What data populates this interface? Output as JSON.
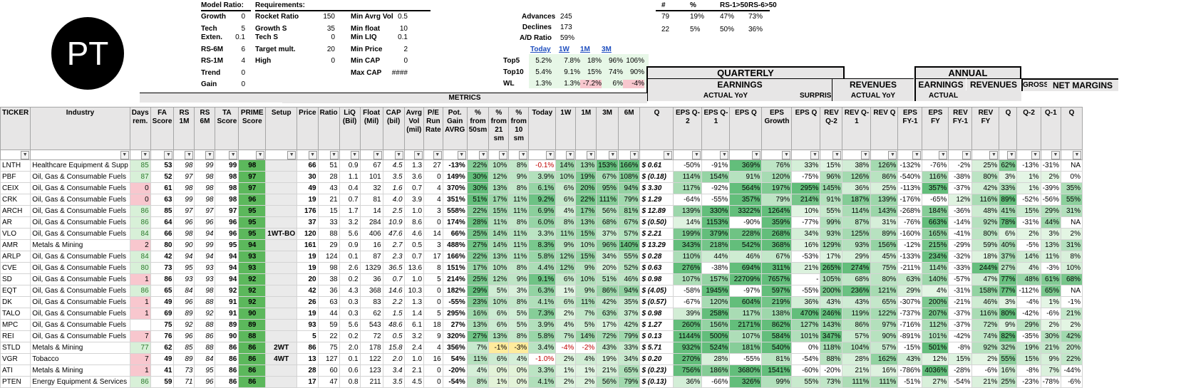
{
  "logo_text": "PT",
  "model_ratio": {
    "title": "Model Ratio:",
    "rows": [
      {
        "label": "Growth",
        "value": "0"
      },
      {
        "label": "Tech",
        "value": "5"
      },
      {
        "label": "Exten.",
        "value": "0.1"
      },
      {
        "label": "RS-6M",
        "value": "6"
      },
      {
        "label": "RS-1M",
        "value": "4"
      },
      {
        "label": "Trend",
        "value": "0"
      },
      {
        "label": "Gain",
        "value": "0"
      }
    ]
  },
  "requirements": {
    "title": "Requirements:",
    "col1": [
      {
        "label": "Rocket Ratio",
        "value": "150"
      },
      {
        "label": "Growth S",
        "value": "35"
      },
      {
        "label": "Tech S",
        "value": "0"
      },
      {
        "label": "Target mult.",
        "value": "20"
      },
      {
        "label": "High",
        "value": "0"
      }
    ],
    "col2": [
      {
        "label": "Min Avrg Vol",
        "value": "0.5"
      },
      {
        "label": "Min float",
        "value": "10"
      },
      {
        "label": "Min LIQ",
        "value": "0.1"
      },
      {
        "label": "Min Price",
        "value": "2"
      },
      {
        "label": "Min CAP",
        "value": "0"
      },
      {
        "label": "Max CAP",
        "value": "####"
      }
    ]
  },
  "breadth": {
    "advances_label": "Advances",
    "advances": "245",
    "declines_label": "Declines",
    "declines": "173",
    "ad_label": "A/D Ratio",
    "ad": "59%"
  },
  "stats": {
    "headers": [
      "#",
      "%",
      "RS-1>50",
      "RS-6>50"
    ],
    "rows": [
      [
        "79",
        "19%",
        "47%",
        "73%"
      ],
      [
        "22",
        "5%",
        "50%",
        "36%"
      ]
    ]
  },
  "perf": {
    "periods": [
      "Today",
      "1W",
      "1M",
      "3M"
    ],
    "rows": [
      {
        "label": "Top5",
        "values": [
          "5.2%",
          "7.8%",
          "18%",
          "96%",
          "106%"
        ]
      },
      {
        "label": "Top10",
        "values": [
          "5.4%",
          "9.1%",
          "15%",
          "74%",
          "90%"
        ]
      },
      {
        "label": "WL",
        "values": [
          "1.3%",
          "1.3%",
          "-7.2%",
          "6%",
          "-4%"
        ]
      }
    ]
  },
  "section_headers": {
    "quarterly": "QUARTERLY",
    "annual": "ANNUAL",
    "earnings": "EARNINGS",
    "revenues": "REVENUES",
    "earnings2": "EARNINGS",
    "revenues2": "REVENUES",
    "actual_yoy": "ACTUAL YoY",
    "surprise": "SURPRISE",
    "actual_yoy2": "ACTUAL YoY",
    "actual": "ACTUAL",
    "gross": "GROSS",
    "net_margins": "NET MARGINS",
    "metrics": "METRICS"
  },
  "columns": [
    "TICKER",
    "Industry",
    "Days rem.",
    "FA Score",
    "RS 1M",
    "RS 6M",
    "TA Score",
    "PRIME Score",
    "Setup",
    "Price",
    "Ratio",
    "LiQ (Bil)",
    "Float (Mil)",
    "CAP (bil)",
    "Avrg Vol (mil)",
    "P/E Run Rate",
    "Pot. Gain AVRG",
    "% from 50sm",
    "% from 21 sm",
    "% from 10 sm",
    "Today",
    "1W",
    "1M",
    "3M",
    "6M",
    "Q",
    "EPS Q-2",
    "EPS Q-1",
    "EPS Q",
    "EPS Growth",
    "EPS Q",
    "REV Q-2",
    "REV Q-1",
    "REV Q",
    "EPS FY-1",
    "EPS FY",
    "REV FY-1",
    "REV FY",
    "Q",
    "Q-2",
    "Q-1",
    "Q"
  ],
  "rows": [
    [
      "LNTH",
      "Healthcare Equipment & Supp",
      "85",
      "53",
      "98",
      "99",
      "99",
      "98",
      "",
      "66",
      "51",
      "0.9",
      "67",
      "4.5",
      "1.3",
      "27",
      "-13%",
      "22%",
      "10%",
      "8%",
      "-0.1%",
      "14%",
      "13%",
      "153%",
      "166%",
      "$ 0.61",
      "-50%",
      "-91%",
      "369%",
      "76%",
      "33%",
      "15%",
      "38%",
      "126%",
      "-132%",
      "-76%",
      "-2%",
      "25%",
      "62%",
      "-13%",
      "-31%",
      "NA"
    ],
    [
      "PBF",
      "Oil, Gas & Consumable Fuels",
      "87",
      "52",
      "97",
      "98",
      "98",
      "97",
      "",
      "30",
      "28",
      "1.1",
      "101",
      "3.5",
      "3.6",
      "0",
      "149%",
      "30%",
      "12%",
      "9%",
      "3.9%",
      "10%",
      "19%",
      "67%",
      "108%",
      "$ (0.18)",
      "114%",
      "154%",
      "91%",
      "120%",
      "-75%",
      "96%",
      "126%",
      "86%",
      "-540%",
      "116%",
      "-38%",
      "80%",
      "3%",
      "1%",
      "2%",
      "0%"
    ],
    [
      "CEIX",
      "Oil, Gas & Consumable Fuels",
      "0",
      "61",
      "98",
      "98",
      "98",
      "97",
      "",
      "49",
      "43",
      "0.4",
      "32",
      "1.6",
      "0.7",
      "4",
      "370%",
      "30%",
      "13%",
      "8%",
      "6.1%",
      "6%",
      "20%",
      "95%",
      "94%",
      "$ 3.30",
      "117%",
      "-92%",
      "564%",
      "197%",
      "295%",
      "145%",
      "36%",
      "25%",
      "-113%",
      "357%",
      "-37%",
      "42%",
      "33%",
      "1%",
      "-39%",
      "35%"
    ],
    [
      "CRK",
      "Oil, Gas & Consumable Fuels",
      "0",
      "63",
      "99",
      "98",
      "98",
      "96",
      "",
      "19",
      "21",
      "0.7",
      "81",
      "4.0",
      "3.9",
      "4",
      "351%",
      "51%",
      "17%",
      "11%",
      "9.2%",
      "6%",
      "22%",
      "111%",
      "79%",
      "$ 1.29",
      "-64%",
      "-55%",
      "357%",
      "79%",
      "214%",
      "91%",
      "187%",
      "139%",
      "-176%",
      "-65%",
      "12%",
      "116%",
      "89%",
      "-52%",
      "-56%",
      "55%"
    ],
    [
      "ARCH",
      "Oil, Gas & Consumable Fuels",
      "86",
      "85",
      "97",
      "97",
      "97",
      "95",
      "",
      "176",
      "15",
      "1.7",
      "14",
      "2.5",
      "1.0",
      "3",
      "558%",
      "22%",
      "15%",
      "11%",
      "6.9%",
      "4%",
      "17%",
      "56%",
      "81%",
      "$ 12.89",
      "139%",
      "330%",
      "3322%",
      "1264%",
      "10%",
      "55%",
      "114%",
      "143%",
      "-268%",
      "184%",
      "-36%",
      "48%",
      "41%",
      "15%",
      "29%",
      "31%"
    ],
    [
      "AR",
      "Oil, Gas & Consumable Fuels",
      "86",
      "64",
      "96",
      "96",
      "96",
      "95",
      "",
      "37",
      "33",
      "3.2",
      "284",
      "10.9",
      "8.6",
      "0",
      "174%",
      "28%",
      "11%",
      "8%",
      "6.0%",
      "8%",
      "13%",
      "68%",
      "67%",
      "$ (0.50)",
      "14%",
      "1153%",
      "-90%",
      "359%",
      "-77%",
      "99%",
      "87%",
      "31%",
      "-76%",
      "663%",
      "-14%",
      "92%",
      "78%",
      "-31%",
      "44%",
      "NA"
    ],
    [
      "VLO",
      "Oil, Gas & Consumable Fuels",
      "84",
      "66",
      "98",
      "94",
      "96",
      "95",
      "1WT-BO",
      "120",
      "88",
      "5.6",
      "406",
      "47.6",
      "4.6",
      "14",
      "66%",
      "25%",
      "14%",
      "11%",
      "3.3%",
      "11%",
      "15%",
      "37%",
      "57%",
      "$ 2.21",
      "199%",
      "379%",
      "228%",
      "268%",
      "34%",
      "93%",
      "125%",
      "89%",
      "-160%",
      "165%",
      "-41%",
      "80%",
      "6%",
      "2%",
      "3%",
      "2%"
    ],
    [
      "AMR",
      "Metals & Mining",
      "2",
      "80",
      "90",
      "99",
      "95",
      "94",
      "",
      "161",
      "29",
      "0.9",
      "16",
      "2.7",
      "0.5",
      "3",
      "488%",
      "27%",
      "14%",
      "11%",
      "8.3%",
      "9%",
      "10%",
      "96%",
      "140%",
      "$ 13.29",
      "343%",
      "218%",
      "542%",
      "368%",
      "16%",
      "129%",
      "93%",
      "156%",
      "-12%",
      "215%",
      "-29%",
      "59%",
      "40%",
      "-5%",
      "13%",
      "31%"
    ],
    [
      "ARLP",
      "Oil, Gas & Consumable Fuels",
      "84",
      "42",
      "94",
      "94",
      "94",
      "93",
      "",
      "19",
      "124",
      "0.1",
      "87",
      "2.3",
      "0.7",
      "17",
      "166%",
      "22%",
      "13%",
      "11%",
      "5.8%",
      "12%",
      "15%",
      "34%",
      "55%",
      "$ 0.28",
      "110%",
      "44%",
      "46%",
      "67%",
      "-53%",
      "17%",
      "29%",
      "45%",
      "-133%",
      "234%",
      "-32%",
      "18%",
      "37%",
      "14%",
      "11%",
      "8%"
    ],
    [
      "CVE",
      "Oil, Gas & Consumable Fuels",
      "80",
      "73",
      "95",
      "93",
      "94",
      "93",
      "",
      "19",
      "98",
      "2.6",
      "1329",
      "36.5",
      "13.6",
      "8",
      "151%",
      "17%",
      "10%",
      "8%",
      "4.4%",
      "12%",
      "9%",
      "20%",
      "52%",
      "$ 0.63",
      "276%",
      "-38%",
      "694%",
      "311%",
      "21%",
      "265%",
      "274%",
      "75%",
      "-211%",
      "114%",
      "-33%",
      "244%",
      "27%",
      "4%",
      "-3%",
      "10%"
    ],
    [
      "SD",
      "Oil, Gas & Consumable Fuels",
      "1",
      "86",
      "93",
      "93",
      "94",
      "92",
      "",
      "20",
      "38",
      "0.2",
      "36",
      "0.7",
      "1.0",
      "5",
      "214%",
      "25%",
      "12%",
      "9%",
      "9.1%",
      "6%",
      "10%",
      "51%",
      "46%",
      "$ 0.98",
      "107%",
      "157%",
      "22709%",
      "7657%",
      "-",
      "105%",
      "68%",
      "80%",
      "63%",
      "140%",
      "-57%",
      "47%",
      "77%",
      "48%",
      "61%",
      "68%"
    ],
    [
      "EQT",
      "Oil, Gas & Consumable Fuels",
      "86",
      "65",
      "84",
      "98",
      "92",
      "92",
      "",
      "42",
      "36",
      "4.3",
      "368",
      "14.6",
      "10.3",
      "0",
      "182%",
      "29%",
      "5%",
      "3%",
      "6.3%",
      "1%",
      "9%",
      "86%",
      "94%",
      "$ (4.05)",
      "-58%",
      "1945%",
      "-97%",
      "597%",
      "-55%",
      "200%",
      "236%",
      "121%",
      "29%",
      "4%",
      "-31%",
      "158%",
      "77%",
      "-112%",
      "65%",
      "NA"
    ],
    [
      "DK",
      "Oil, Gas & Consumable Fuels",
      "1",
      "49",
      "96",
      "88",
      "91",
      "92",
      "",
      "26",
      "63",
      "0.3",
      "83",
      "2.2",
      "1.3",
      "0",
      "-55%",
      "23%",
      "10%",
      "8%",
      "4.1%",
      "6%",
      "11%",
      "42%",
      "35%",
      "$ (0.57)",
      "-67%",
      "120%",
      "604%",
      "219%",
      "36%",
      "43%",
      "43%",
      "65%",
      "-307%",
      "200%",
      "-21%",
      "46%",
      "3%",
      "-4%",
      "1%",
      "-1%"
    ],
    [
      "TALO",
      "Oil, Gas & Consumable Fuels",
      "1",
      "69",
      "89",
      "92",
      "91",
      "90",
      "",
      "19",
      "44",
      "0.3",
      "62",
      "1.5",
      "1.4",
      "5",
      "295%",
      "16%",
      "6%",
      "5%",
      "7.3%",
      "2%",
      "7%",
      "63%",
      "37%",
      "$ 0.98",
      "39%",
      "258%",
      "117%",
      "138%",
      "470%",
      "246%",
      "119%",
      "122%",
      "-737%",
      "207%",
      "-37%",
      "116%",
      "80%",
      "-42%",
      "-6%",
      "21%"
    ],
    [
      "MPC",
      "Oil, Gas & Consumable Fuels",
      "",
      "75",
      "92",
      "88",
      "89",
      "89",
      "",
      "93",
      "59",
      "5.6",
      "543",
      "48.6",
      "6.1",
      "18",
      "27%",
      "13%",
      "6%",
      "5%",
      "3.9%",
      "4%",
      "5%",
      "17%",
      "42%",
      "$ 1.27",
      "260%",
      "156%",
      "2171%",
      "862%",
      "127%",
      "143%",
      "86%",
      "97%",
      "-716%",
      "112%",
      "-37%",
      "72%",
      "9%",
      "29%",
      "2%",
      "2%"
    ],
    [
      "REI",
      "Oil, Gas & Consumable Fuels",
      "7",
      "76",
      "96",
      "86",
      "90",
      "88",
      "",
      "5",
      "22",
      "0.2",
      "72",
      "0.5",
      "3.2",
      "9",
      "320%",
      "27%",
      "13%",
      "8%",
      "5.8%",
      "7%",
      "14%",
      "72%",
      "79%",
      "$ 0.13",
      "1144%",
      "500%",
      "107%",
      "584%",
      "101%",
      "347%",
      "57%",
      "90%",
      "-891%",
      "101%",
      "-42%",
      "74%",
      "82%",
      "-35%",
      "30%",
      "42%"
    ],
    [
      "STLD",
      "Metals & Mining",
      "77",
      "62",
      "85",
      "88",
      "86",
      "86",
      "2WT",
      "86",
      "75",
      "2.0",
      "178",
      "15.8",
      "2.4",
      "4",
      "356%",
      "7%",
      "-1%",
      "-3%",
      "3.4%",
      "-4%",
      "-2%",
      "43%",
      "33%",
      "$ 5.71",
      "932%",
      "524%",
      "181%",
      "540%",
      "0%",
      "118%",
      "104%",
      "57%",
      "-15%",
      "501%",
      "-8%",
      "92%",
      "32%",
      "19%",
      "21%",
      "20%"
    ],
    [
      "VGR",
      "Tobacco",
      "7",
      "49",
      "89",
      "84",
      "86",
      "86",
      "4WT",
      "13",
      "127",
      "0.1",
      "122",
      "2.0",
      "1.0",
      "16",
      "54%",
      "11%",
      "6%",
      "4%",
      "-1.0%",
      "2%",
      "4%",
      "19%",
      "34%",
      "$ 0.20",
      "270%",
      "28%",
      "-55%",
      "81%",
      "-54%",
      "88%",
      "28%",
      "162%",
      "43%",
      "12%",
      "15%",
      "2%",
      "55%",
      "15%",
      "9%",
      "22%"
    ],
    [
      "ATI",
      "Metals & Mining",
      "1",
      "41",
      "73",
      "95",
      "86",
      "86",
      "",
      "28",
      "60",
      "0.6",
      "123",
      "3.4",
      "2.1",
      "0",
      "-20%",
      "4%",
      "0%",
      "0%",
      "3.3%",
      "1%",
      "1%",
      "21%",
      "65%",
      "$ (0.23)",
      "756%",
      "186%",
      "3680%",
      "1541%",
      "-60%",
      "-20%",
      "21%",
      "16%",
      "-786%",
      "4036%",
      "-28%",
      "-6%",
      "16%",
      "-8%",
      "7%",
      "-44%"
    ],
    [
      "PTEN",
      "Energy Equipment & Services",
      "86",
      "59",
      "71",
      "96",
      "86",
      "86",
      "",
      "17",
      "47",
      "0.8",
      "211",
      "3.5",
      "4.5",
      "0",
      "-54%",
      "8%",
      "1%",
      "0%",
      "4.1%",
      "2%",
      "2%",
      "56%",
      "79%",
      "$ (0.13)",
      "36%",
      "-66%",
      "326%",
      "99%",
      "55%",
      "73%",
      "111%",
      "111%",
      "-51%",
      "27%",
      "-54%",
      "21%",
      "25%",
      "-23%",
      "-78%",
      "-6%"
    ]
  ]
}
